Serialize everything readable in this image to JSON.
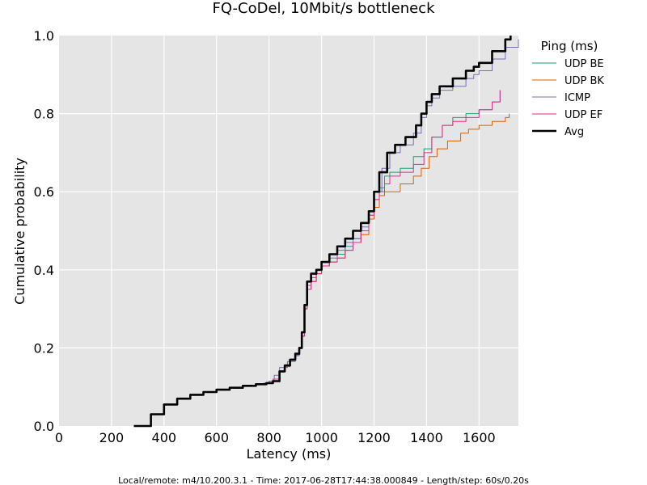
{
  "chart_data": {
    "type": "line",
    "title": "FQ-CoDel, 10Mbit/s bottleneck",
    "xlabel": "Latency (ms)",
    "ylabel": "Cumulative probability",
    "xlim": [
      0,
      1750
    ],
    "ylim": [
      0,
      1.0
    ],
    "xticks": [
      0,
      200,
      400,
      600,
      800,
      1000,
      1200,
      1400,
      1600
    ],
    "yticks": [
      0.0,
      0.2,
      0.4,
      0.6,
      0.8,
      1.0
    ],
    "xtick_labels": [
      "0",
      "200",
      "400",
      "600",
      "800",
      "1000",
      "1200",
      "1400",
      "1600"
    ],
    "ytick_labels": [
      "0.0",
      "0.2",
      "0.4",
      "0.6",
      "0.8",
      "1.0"
    ],
    "grid": true,
    "background": "#e5e5e5",
    "legend_title": "Ping (ms)",
    "legend_position": "outside-right",
    "series": [
      {
        "name": "UDP BE",
        "color": "#1b9e77",
        "width": 1,
        "x": [
          285,
          350,
          400,
          450,
          500,
          550,
          600,
          650,
          700,
          750,
          790,
          815,
          840,
          860,
          880,
          900,
          915,
          925,
          935,
          945,
          960,
          980,
          1000,
          1030,
          1060,
          1090,
          1120,
          1150,
          1180,
          1200,
          1220,
          1240,
          1260,
          1300,
          1350,
          1390,
          1420,
          1460,
          1500,
          1550,
          1600,
          1650,
          1680
        ],
        "y": [
          0.0,
          0.03,
          0.055,
          0.07,
          0.08,
          0.087,
          0.093,
          0.098,
          0.103,
          0.107,
          0.11,
          0.12,
          0.14,
          0.155,
          0.17,
          0.185,
          0.2,
          0.23,
          0.3,
          0.35,
          0.37,
          0.39,
          0.41,
          0.42,
          0.44,
          0.46,
          0.48,
          0.5,
          0.54,
          0.58,
          0.61,
          0.64,
          0.65,
          0.66,
          0.69,
          0.71,
          0.74,
          0.77,
          0.79,
          0.8,
          0.81,
          0.83,
          0.86
        ]
      },
      {
        "name": "UDP BK",
        "color": "#d95f02",
        "width": 1,
        "x": [
          285,
          350,
          400,
          450,
          500,
          550,
          600,
          650,
          700,
          750,
          790,
          815,
          840,
          860,
          880,
          900,
          915,
          925,
          935,
          945,
          960,
          980,
          1000,
          1030,
          1060,
          1090,
          1120,
          1150,
          1180,
          1200,
          1220,
          1240,
          1300,
          1350,
          1380,
          1410,
          1440,
          1480,
          1530,
          1560,
          1600,
          1650,
          1700,
          1715
        ],
        "y": [
          0.0,
          0.03,
          0.055,
          0.07,
          0.08,
          0.087,
          0.093,
          0.098,
          0.103,
          0.107,
          0.11,
          0.12,
          0.138,
          0.152,
          0.168,
          0.182,
          0.198,
          0.23,
          0.3,
          0.35,
          0.37,
          0.39,
          0.41,
          0.42,
          0.43,
          0.45,
          0.47,
          0.49,
          0.53,
          0.56,
          0.59,
          0.6,
          0.62,
          0.64,
          0.66,
          0.69,
          0.71,
          0.73,
          0.75,
          0.76,
          0.77,
          0.78,
          0.79,
          0.8
        ]
      },
      {
        "name": "ICMP",
        "color": "#7570b3",
        "width": 1,
        "x": [
          285,
          350,
          400,
          450,
          500,
          550,
          600,
          650,
          700,
          750,
          780,
          800,
          820,
          840,
          870,
          900,
          915,
          925,
          935,
          945,
          960,
          980,
          1000,
          1030,
          1060,
          1090,
          1120,
          1150,
          1180,
          1200,
          1230,
          1260,
          1300,
          1350,
          1380,
          1400,
          1420,
          1450,
          1500,
          1550,
          1580,
          1600,
          1650,
          1700,
          1750
        ],
        "y": [
          0.0,
          0.03,
          0.055,
          0.07,
          0.08,
          0.087,
          0.093,
          0.098,
          0.103,
          0.107,
          0.11,
          0.115,
          0.13,
          0.15,
          0.165,
          0.18,
          0.2,
          0.23,
          0.31,
          0.36,
          0.38,
          0.4,
          0.41,
          0.43,
          0.45,
          0.47,
          0.48,
          0.51,
          0.55,
          0.6,
          0.66,
          0.7,
          0.72,
          0.75,
          0.79,
          0.82,
          0.84,
          0.86,
          0.87,
          0.89,
          0.9,
          0.91,
          0.94,
          0.97,
          0.99
        ]
      },
      {
        "name": "UDP EF",
        "color": "#e7298a",
        "width": 1,
        "x": [
          285,
          350,
          400,
          450,
          500,
          550,
          600,
          650,
          700,
          750,
          790,
          815,
          840,
          860,
          880,
          900,
          915,
          925,
          935,
          945,
          960,
          980,
          1000,
          1030,
          1060,
          1090,
          1120,
          1150,
          1180,
          1200,
          1220,
          1240,
          1260,
          1300,
          1350,
          1390,
          1420,
          1460,
          1500,
          1550,
          1600,
          1650,
          1680
        ],
        "y": [
          0.0,
          0.03,
          0.055,
          0.07,
          0.08,
          0.087,
          0.093,
          0.098,
          0.103,
          0.107,
          0.11,
          0.12,
          0.14,
          0.155,
          0.17,
          0.185,
          0.2,
          0.23,
          0.3,
          0.35,
          0.37,
          0.39,
          0.41,
          0.42,
          0.43,
          0.45,
          0.47,
          0.5,
          0.54,
          0.58,
          0.6,
          0.62,
          0.64,
          0.65,
          0.67,
          0.7,
          0.74,
          0.77,
          0.78,
          0.79,
          0.81,
          0.83,
          0.86
        ]
      },
      {
        "name": "Avg",
        "color": "#000000",
        "width": 2.6,
        "x": [
          285,
          350,
          400,
          450,
          500,
          550,
          600,
          650,
          700,
          750,
          790,
          815,
          840,
          860,
          880,
          900,
          915,
          925,
          935,
          945,
          960,
          980,
          1000,
          1030,
          1060,
          1090,
          1120,
          1150,
          1180,
          1200,
          1220,
          1250,
          1280,
          1320,
          1360,
          1380,
          1400,
          1420,
          1450,
          1500,
          1550,
          1580,
          1600,
          1650,
          1700,
          1720
        ],
        "y": [
          0.0,
          0.03,
          0.055,
          0.07,
          0.08,
          0.087,
          0.093,
          0.098,
          0.103,
          0.107,
          0.11,
          0.115,
          0.14,
          0.155,
          0.17,
          0.185,
          0.2,
          0.24,
          0.31,
          0.37,
          0.39,
          0.4,
          0.42,
          0.44,
          0.46,
          0.48,
          0.5,
          0.52,
          0.55,
          0.6,
          0.65,
          0.7,
          0.72,
          0.74,
          0.77,
          0.8,
          0.83,
          0.85,
          0.87,
          0.89,
          0.91,
          0.92,
          0.93,
          0.96,
          0.99,
          1.0
        ]
      }
    ],
    "footer": "Local/remote: m4/10.200.3.1 - Time: 2017-06-28T17:44:38.000849 - Length/step: 60s/0.20s"
  }
}
